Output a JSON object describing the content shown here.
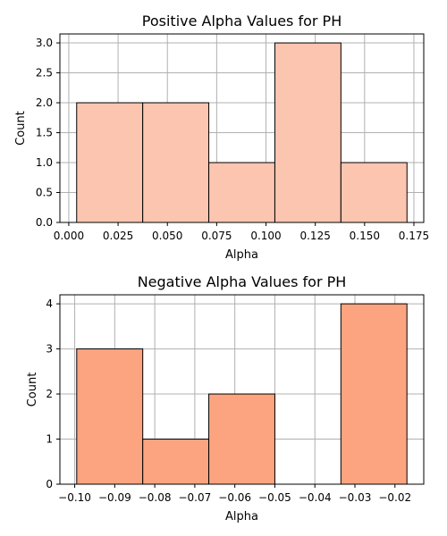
{
  "chart_data": [
    {
      "type": "bar",
      "title": "Positive Alpha Values for PH",
      "xlabel": "Alpha",
      "ylabel": "Count",
      "bins": [
        {
          "x0": 0.004,
          "x1": 0.0375,
          "count": 2
        },
        {
          "x0": 0.0375,
          "x1": 0.071,
          "count": 2
        },
        {
          "x0": 0.071,
          "x1": 0.1045,
          "count": 1
        },
        {
          "x0": 0.1045,
          "x1": 0.138,
          "count": 3
        },
        {
          "x0": 0.138,
          "x1": 0.1715,
          "count": 1
        }
      ],
      "xlim": [
        -0.0045,
        0.18
      ],
      "ylim": [
        0,
        3.15
      ],
      "xticks": [
        0,
        0.025,
        0.05,
        0.075,
        0.1,
        0.125,
        0.15,
        0.175
      ],
      "xtick_labels": [
        "0.000",
        "0.025",
        "0.050",
        "0.075",
        "0.100",
        "0.125",
        "0.150",
        "0.175"
      ],
      "yticks": [
        0,
        0.5,
        1,
        1.5,
        2,
        2.5,
        3
      ],
      "ytick_labels": [
        "0.0",
        "0.5",
        "1.0",
        "1.5",
        "2.0",
        "2.5",
        "3.0"
      ],
      "grid": true,
      "color": "#fcc5b0"
    },
    {
      "type": "bar",
      "title": "Negative Alpha Values for PH",
      "xlabel": "Alpha",
      "ylabel": "Count",
      "bins": [
        {
          "x0": -0.0995,
          "x1": -0.083,
          "count": 3
        },
        {
          "x0": -0.083,
          "x1": -0.0665,
          "count": 1
        },
        {
          "x0": -0.0665,
          "x1": -0.05,
          "count": 2
        },
        {
          "x0": -0.05,
          "x1": -0.0335,
          "count": 0
        },
        {
          "x0": -0.0335,
          "x1": -0.017,
          "count": 4
        }
      ],
      "xlim": [
        -0.1037,
        -0.0128
      ],
      "ylim": [
        0,
        4.2
      ],
      "xticks": [
        -0.1,
        -0.09,
        -0.08,
        -0.07,
        -0.06,
        -0.05,
        -0.04,
        -0.03,
        -0.02
      ],
      "xtick_labels": [
        "−0.10",
        "−0.09",
        "−0.08",
        "−0.07",
        "−0.06",
        "−0.05",
        "−0.04",
        "−0.03",
        "−0.02"
      ],
      "yticks": [
        0,
        1,
        2,
        3,
        4
      ],
      "ytick_labels": [
        "0",
        "1",
        "2",
        "3",
        "4"
      ],
      "grid": true,
      "color": "#fca480"
    }
  ]
}
